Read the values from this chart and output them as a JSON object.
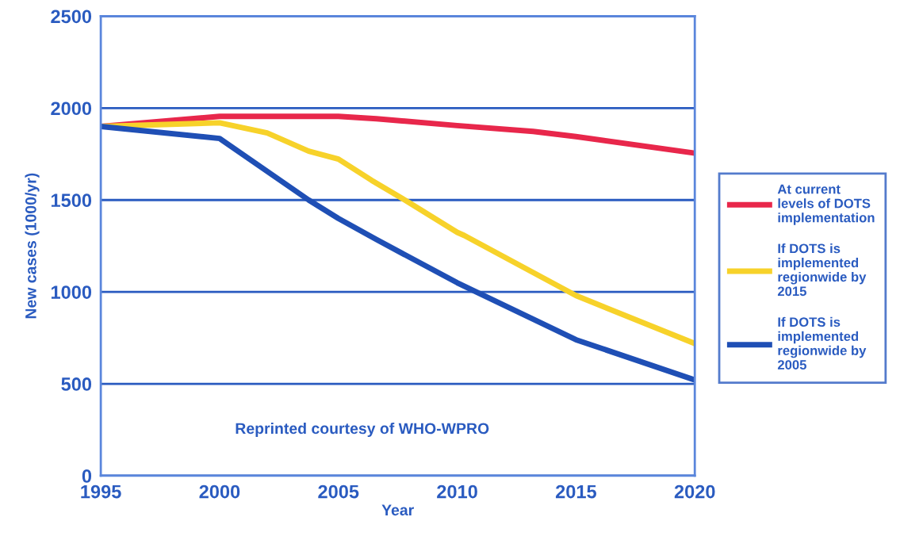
{
  "chart_data": {
    "type": "line",
    "xlabel": "Year",
    "ylabel": "New cases (1000/yr)",
    "xlim": [
      1995,
      2020
    ],
    "xticks": [
      1995,
      2000,
      2005,
      2010,
      2015,
      2020
    ],
    "ylim": [
      0,
      2500
    ],
    "yticks": [
      0,
      500,
      1000,
      1500,
      2000,
      2500
    ],
    "grid": "y",
    "legend": "right",
    "marker": "none",
    "line_style": "solid",
    "annotations": [
      "Reprinted courtesy of WHO-WPRO"
    ],
    "series": [
      {
        "name": "At current\nlevels of DOTS\nimplementation",
        "color": "#e8274b",
        "x": [
          1995,
          2000,
          2005,
          2006.6,
          2010,
          2013.2,
          2015,
          2020
        ],
        "values": [
          1900,
          1955,
          1955,
          1942,
          1905,
          1873,
          1845,
          1755
        ]
      },
      {
        "name": "If DOTS is\nimplemented\nregionwide by\n2015",
        "color": "#f7d22a",
        "x": [
          1995,
          2000,
          2002,
          2003.75,
          2005,
          2006.4,
          2007.7,
          2010,
          2010.3,
          2015,
          2020
        ],
        "values": [
          1900,
          1920,
          1865,
          1766,
          1723,
          1607,
          1508,
          1324,
          1307,
          980,
          719
        ]
      },
      {
        "name": "If DOTS is\nimplemented\nregionwide by\n2005",
        "color": "#1f4fb5",
        "x": [
          1995,
          2000,
          2003.75,
          2005,
          2006.6,
          2010,
          2010.8,
          2015,
          2020
        ],
        "values": [
          1900,
          1835,
          1500,
          1400,
          1285,
          1050,
          1000,
          740,
          521
        ]
      }
    ]
  }
}
